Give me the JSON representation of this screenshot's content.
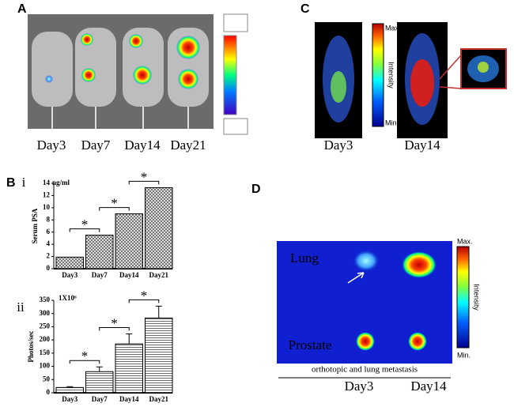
{
  "panel_a": {
    "label": "A",
    "days": [
      "Day3",
      "Day7",
      "Day14",
      "Day21"
    ]
  },
  "panel_b": {
    "label": "B"
  },
  "panel_c": {
    "label": "C",
    "days": [
      "Day3",
      "Day14"
    ],
    "scale_max": "Max.",
    "scale_title": "Intensity",
    "scale_min": "Min."
  },
  "panel_d": {
    "label": "D",
    "rows": [
      "Lung",
      "Prostate"
    ],
    "caption": "orthotopic  and lung  metastasis",
    "days": [
      "Day3",
      "Day14"
    ],
    "scale_max": "Max.",
    "scale_title": "Intensity",
    "scale_min": "Min."
  },
  "chart_data": [
    {
      "type": "bar",
      "panel": "i",
      "unit": "ng/ml",
      "y_label": "Serum PSA",
      "categories": [
        "Day3",
        "Day7",
        "Day14",
        "Day21"
      ],
      "values": [
        1.9,
        5.5,
        9,
        13.3
      ],
      "ylim": [
        0,
        14
      ],
      "yticks": [
        0,
        2,
        4,
        6,
        8,
        10,
        12,
        14
      ],
      "annotations": [
        "*",
        "*",
        "*"
      ]
    },
    {
      "type": "bar",
      "panel": "ii",
      "unit": "1X10⁶",
      "y_label": "Photos/sec",
      "categories": [
        "Day3",
        "Day7",
        "Day14",
        "Day21"
      ],
      "values": [
        20,
        80,
        185,
        283
      ],
      "errors": [
        3,
        18,
        38,
        45
      ],
      "ylim": [
        0,
        350
      ],
      "yticks": [
        0,
        50,
        100,
        150,
        200,
        250,
        300,
        350
      ],
      "annotations": [
        "*",
        "*",
        "*"
      ]
    }
  ]
}
